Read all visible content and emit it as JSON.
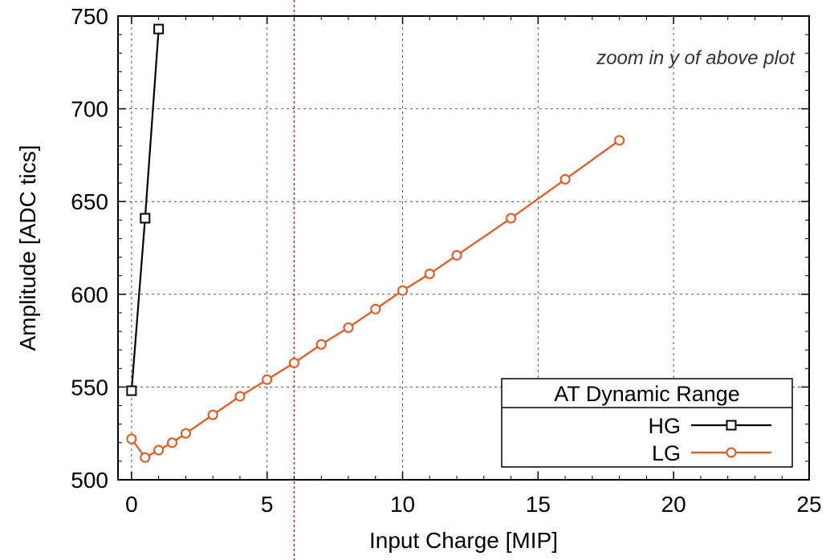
{
  "chart_data": {
    "type": "line",
    "xlabel": "Input Charge [MIP]",
    "ylabel": "Amplitude [ADC tics]",
    "xlim": [
      -0.5,
      25
    ],
    "ylim": [
      500,
      750
    ],
    "xticks": [
      0,
      5,
      10,
      15,
      20,
      25
    ],
    "yticks": [
      500,
      550,
      600,
      650,
      700,
      750
    ],
    "grid": true,
    "annotation": "zoom in y of above plot",
    "vline_x": 6,
    "legend": {
      "title": "AT Dynamic Range",
      "placement": "bottom-right"
    },
    "series": [
      {
        "name": "HG",
        "color": "#000000",
        "marker": "square",
        "x": [
          0,
          0.5,
          1
        ],
        "y": [
          548,
          641,
          743
        ]
      },
      {
        "name": "LG",
        "color": "#e8541a",
        "marker": "circle",
        "x": [
          0,
          0.5,
          1,
          1.5,
          2,
          3,
          4,
          5,
          6,
          7,
          8,
          9,
          10,
          11,
          12,
          14,
          16,
          18
        ],
        "y": [
          522,
          512,
          516,
          520,
          525,
          535,
          545,
          554,
          563,
          573,
          582,
          592,
          602,
          611,
          621,
          641,
          662,
          683
        ]
      }
    ]
  }
}
